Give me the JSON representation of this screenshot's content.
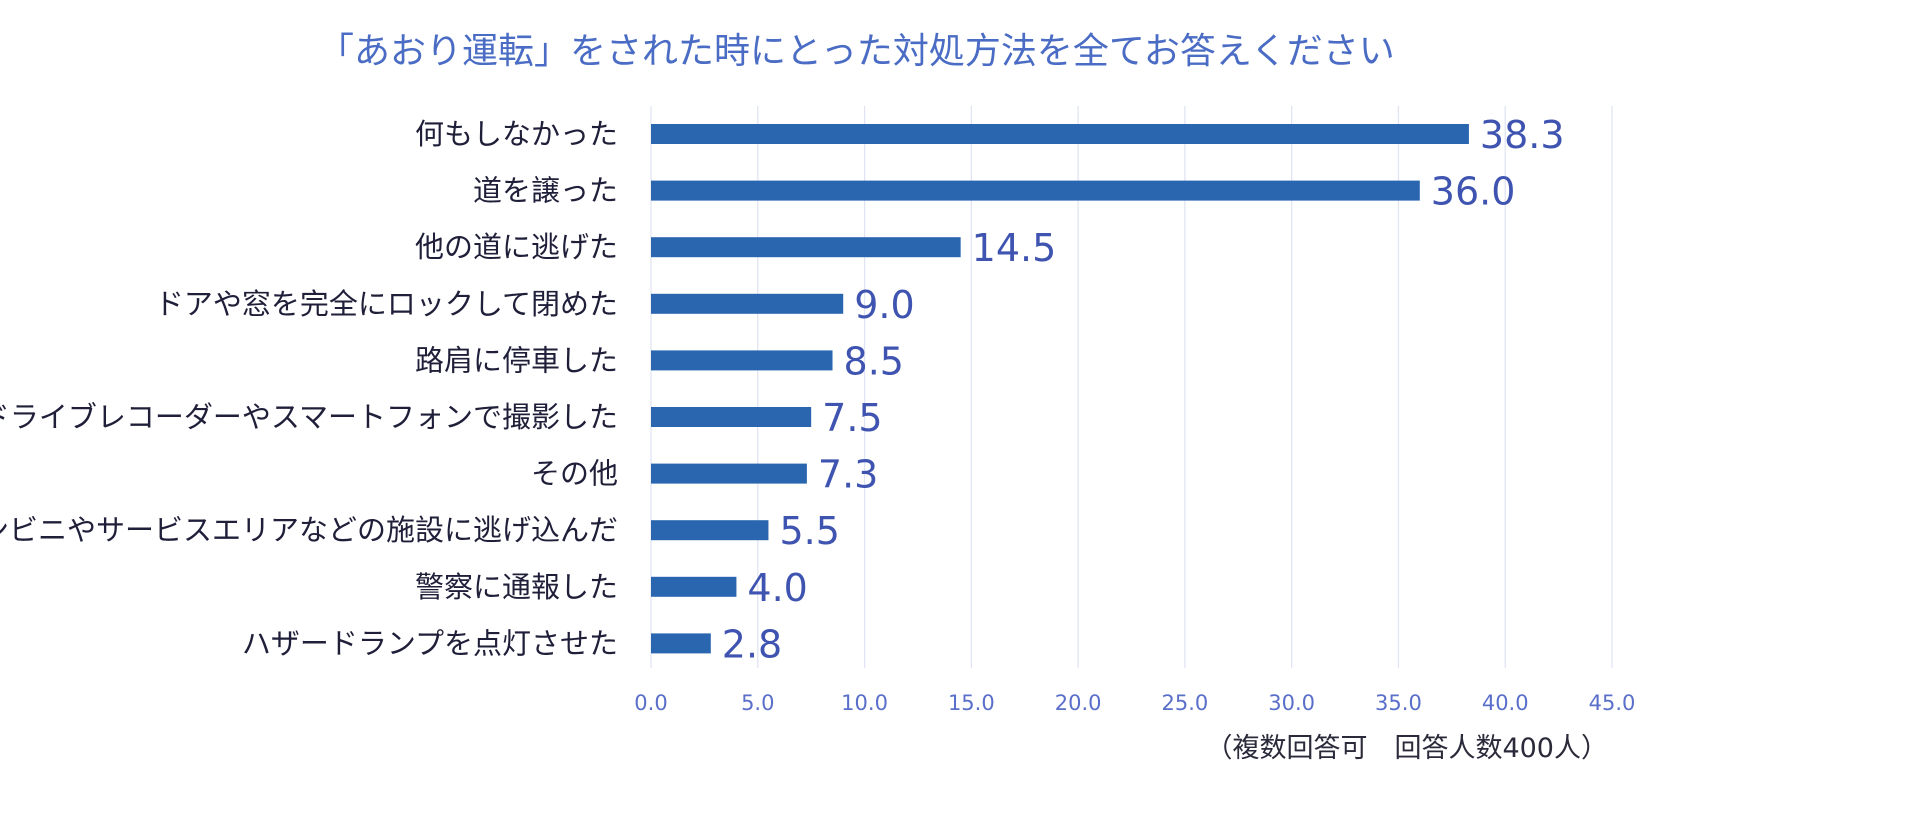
{
  "chart_data": {
    "type": "bar",
    "orientation": "horizontal",
    "title": "「あおり運転」をされた時にとった対処方法を全てお答えください",
    "categories": [
      "何もしなかった",
      "道を譲った",
      "他の道に逃げた",
      "ドアや窓を完全にロックして閉めた",
      "路肩に停車した",
      "ドライブレコーダーやスマートフォンで撮影した",
      "その他",
      "コンビニやサービスエリアなどの施設に逃げ込んだ",
      "警察に通報した",
      "ハザードランプを点灯させた"
    ],
    "values": [
      38.3,
      36.0,
      14.5,
      9.0,
      8.5,
      7.5,
      7.3,
      5.5,
      4.0,
      2.8
    ],
    "value_labels": [
      "38.3",
      "36.0",
      "14.5",
      "9.0",
      "8.5",
      "7.5",
      "7.3",
      "5.5",
      "4.0",
      "2.8"
    ],
    "xlim": [
      0,
      45
    ],
    "xticks": [
      "0.0",
      "5.0",
      "10.0",
      "15.0",
      "20.0",
      "25.0",
      "30.0",
      "35.0",
      "40.0",
      "45.0"
    ],
    "grid": "vertical",
    "note": "（複数回答可　回答人数400人）",
    "colors": {
      "bar": "#2a66b0",
      "title": "#4a6cc4",
      "value_label": "#3f54b0",
      "tick_label": "#5a6fc9",
      "grid": "#dfe3f3"
    }
  }
}
